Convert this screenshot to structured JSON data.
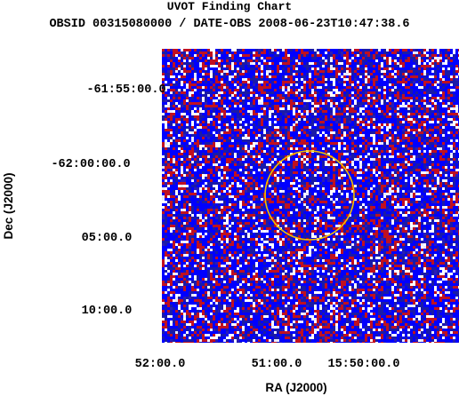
{
  "chart_data": {
    "type": "image",
    "title": "UVOT Finding Chart",
    "subtitle": "OBSID 00315080000 / DATE-OBS 2008-06-23T10:47:38.6",
    "xlabel": "RA (J2000)",
    "ylabel": "Dec (J2000)",
    "x_ticks": [
      "52:00.0",
      "51:00.0",
      "15:50:00.0"
    ],
    "y_ticks": [
      "-61:55:00.0",
      "-62:00:00.0",
      "05:00.0",
      "10:00.0"
    ],
    "noise_colors": [
      "#0000ff",
      "#1a1aa8",
      "#c01020",
      "#ffffff",
      "#e8e8ff",
      "#f2f2f2"
    ],
    "source_circle": {
      "color": "#f0c000"
    }
  }
}
